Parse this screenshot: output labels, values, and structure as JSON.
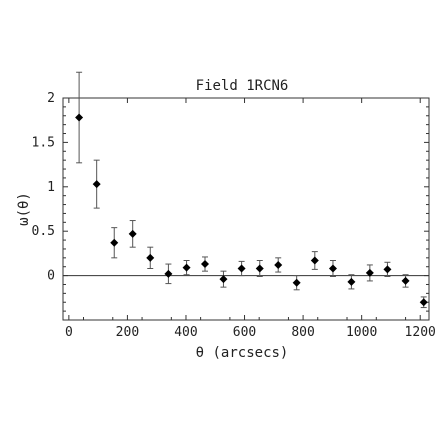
{
  "chart_data": {
    "type": "scatter",
    "title": "Field 1RCN6",
    "xlabel": "θ (arcsecs)",
    "ylabel": "ω(θ)",
    "xlim": [
      -20,
      1230
    ],
    "ylim": [
      -0.5,
      2.0
    ],
    "x_ticks": [
      0,
      200,
      400,
      600,
      800,
      1000,
      1200
    ],
    "y_ticks": [
      0,
      0.5,
      1,
      1.5,
      2
    ],
    "x_tick_labels": [
      "0",
      "200",
      "400",
      "600",
      "800",
      "1000",
      "1200"
    ],
    "y_tick_labels": [
      "0",
      "0.5",
      "1",
      "1.5",
      "2"
    ],
    "zero_line": true,
    "grid": false,
    "marker": "diamond",
    "series": [
      {
        "points": [
          {
            "x": 35,
            "y": 1.78,
            "err": 0.51
          },
          {
            "x": 95,
            "y": 1.03,
            "err": 0.27
          },
          {
            "x": 155,
            "y": 0.37,
            "err": 0.17
          },
          {
            "x": 218,
            "y": 0.47,
            "err": 0.15
          },
          {
            "x": 278,
            "y": 0.2,
            "err": 0.12
          },
          {
            "x": 340,
            "y": 0.02,
            "err": 0.11
          },
          {
            "x": 402,
            "y": 0.09,
            "err": 0.08
          },
          {
            "x": 465,
            "y": 0.13,
            "err": 0.08
          },
          {
            "x": 528,
            "y": -0.04,
            "err": 0.09
          },
          {
            "x": 590,
            "y": 0.08,
            "err": 0.08
          },
          {
            "x": 652,
            "y": 0.08,
            "err": 0.09
          },
          {
            "x": 715,
            "y": 0.12,
            "err": 0.08
          },
          {
            "x": 778,
            "y": -0.08,
            "err": 0.08
          },
          {
            "x": 840,
            "y": 0.17,
            "err": 0.1
          },
          {
            "x": 902,
            "y": 0.08,
            "err": 0.09
          },
          {
            "x": 965,
            "y": -0.07,
            "err": 0.08
          },
          {
            "x": 1028,
            "y": 0.03,
            "err": 0.09
          },
          {
            "x": 1088,
            "y": 0.07,
            "err": 0.08
          },
          {
            "x": 1150,
            "y": -0.06,
            "err": 0.07
          },
          {
            "x": 1212,
            "y": -0.3,
            "err": 0.06
          }
        ]
      }
    ]
  }
}
